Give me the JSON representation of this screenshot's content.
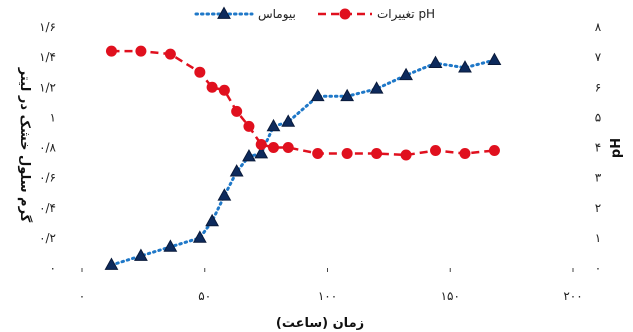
{
  "chart_data": {
    "type": "line",
    "xlabel": "زمان (ساعت)",
    "ylabel_left": "گرم سلول خشک در لیتر",
    "ylabel_right": "pH",
    "xlim": [
      0,
      200
    ],
    "ylim_left": [
      0,
      1.6
    ],
    "ylim_right": [
      0,
      8
    ],
    "x_ticks": [
      0,
      50,
      100,
      150,
      200
    ],
    "x_tick_labels": [
      "۰",
      "۵۰",
      "۱۰۰",
      "۱۵۰",
      "۲۰۰"
    ],
    "y_left_ticks": [
      0,
      0.2,
      0.4,
      0.6,
      0.8,
      1,
      1.2,
      1.4,
      1.6
    ],
    "y_left_tick_labels": [
      "۰",
      "۰/۲",
      "۰/۴",
      "۰/۶",
      "۰/۸",
      "۱",
      "۱/۲",
      "۱/۴",
      "۱/۶"
    ],
    "y_right_ticks": [
      0,
      1,
      2,
      3,
      4,
      5,
      6,
      7,
      8
    ],
    "y_right_tick_labels": [
      "۰",
      "۱",
      "۲",
      "۳",
      "۴",
      "۵",
      "۶",
      "۷",
      "۸"
    ],
    "grid": false,
    "legend_position": "top-center",
    "series": [
      {
        "name": "بیوماس",
        "axis": "left",
        "color": "#1f78c8",
        "marker": "triangle",
        "line_style": "dotted",
        "x": [
          12,
          24,
          36,
          48,
          53,
          58,
          63,
          68,
          73,
          78,
          84,
          96,
          108,
          120,
          132,
          144,
          156,
          168
        ],
        "y": [
          0.02,
          0.08,
          0.14,
          0.2,
          0.31,
          0.48,
          0.64,
          0.74,
          0.76,
          0.94,
          0.97,
          1.14,
          1.14,
          1.19,
          1.28,
          1.36,
          1.33,
          1.38
        ]
      },
      {
        "name": "تغییرات pH",
        "axis": "right",
        "color": "#e0101e",
        "marker": "circle",
        "line_style": "dashed",
        "x": [
          12,
          24,
          36,
          48,
          53,
          58,
          63,
          68,
          73,
          78,
          84,
          96,
          108,
          120,
          132,
          144,
          156,
          168
        ],
        "y": [
          7.2,
          7.2,
          7.1,
          6.5,
          6.0,
          5.9,
          5.2,
          4.7,
          4.1,
          4.0,
          4.0,
          3.8,
          3.8,
          3.8,
          3.75,
          3.9,
          3.8,
          3.9
        ]
      }
    ]
  }
}
